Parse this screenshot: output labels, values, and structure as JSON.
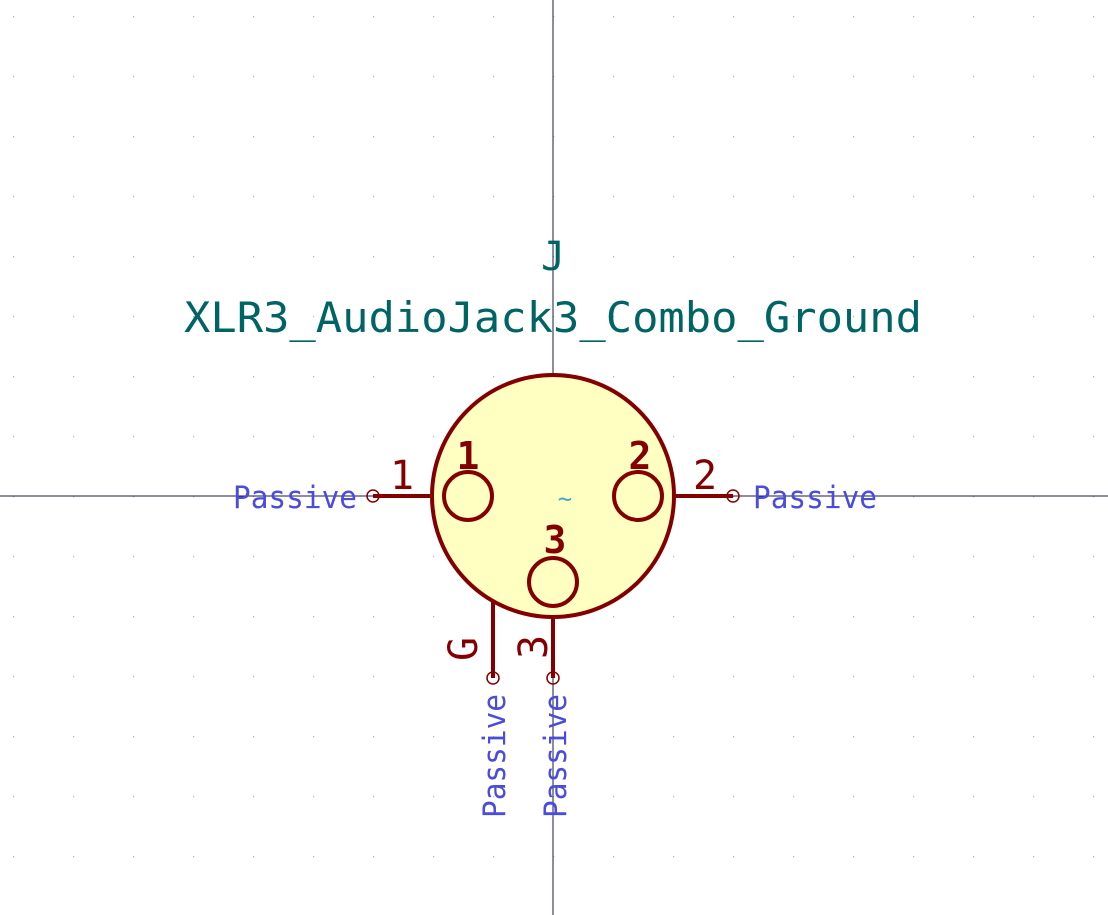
{
  "symbol": {
    "reference": "J",
    "value": "XLR3_AudioJack3_Combo_Ground",
    "center_mark": "~"
  },
  "pins": [
    {
      "number": "1",
      "electrical_type": "Passive",
      "contact_label": "1"
    },
    {
      "number": "2",
      "electrical_type": "Passive",
      "contact_label": "2"
    },
    {
      "number": "3",
      "electrical_type": "Passive",
      "contact_label": "3"
    },
    {
      "number": "G",
      "electrical_type": "Passive"
    }
  ],
  "colors": {
    "background": "#ffffff",
    "grid_dot": "#b4b4b4",
    "axis": "#1a1a4a",
    "body_fill": "#ffffc2",
    "outline": "#840000",
    "field_text": "#006464",
    "pin_type_text": "#4c4cdc",
    "center_mark": "#48a8c8"
  }
}
